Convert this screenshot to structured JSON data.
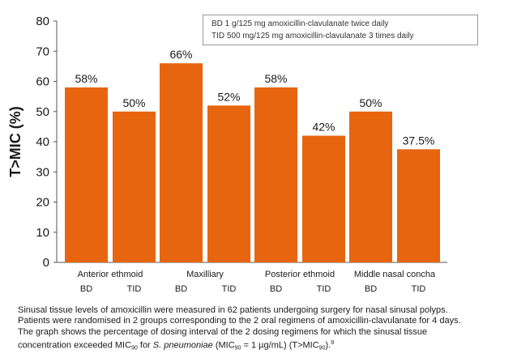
{
  "chart_data": {
    "type": "bar",
    "ylabel": "T>MIC (%)",
    "ylim": [
      0,
      80
    ],
    "yticks": [
      0,
      10,
      20,
      30,
      40,
      50,
      60,
      70,
      80
    ],
    "bar_color": "#e8650f",
    "groups": [
      "Anterior ethmoid",
      "Maxilliary",
      "Posterior ethmoid",
      "Middle nasal concha"
    ],
    "regimens": [
      "BD",
      "TID"
    ],
    "values": [
      [
        58,
        50
      ],
      [
        66,
        52
      ],
      [
        58,
        42
      ],
      [
        50,
        37.5
      ]
    ],
    "data_labels": [
      [
        "58%",
        "50%"
      ],
      [
        "66%",
        "52%"
      ],
      [
        "58%",
        "42%"
      ],
      [
        "50%",
        "37.5%"
      ]
    ],
    "legend": [
      "BD 1 g/125 mg amoxicillin-clavulanate twice daily",
      "TID 500 mg/125 mg amoxicillin-clavulanate 3 times daily"
    ],
    "grid": false
  },
  "caption": {
    "line1": "Sinusal tissue levels of amoxicillin were measured in 62 patients undergoing surgery for nasal sinusal polyps.",
    "line2": "Patients were randomised in 2 groups corresponding to the 2 oral regimens of amoxicillin-clavulanate for 4 days.",
    "line3": "The graph shows the percentage of dosing interval of the 2 dosing regimens for which the sinusal tissue",
    "line4_a": "concentration exceeded MIC",
    "sub_90": "90",
    "line4_b": " for ",
    "organism": "S. pneumoniae",
    "line4_c": " (MIC",
    "line4_d": " = 1 µg/mL) (T>MIC",
    "line4_e": ").",
    "reference": "9"
  }
}
